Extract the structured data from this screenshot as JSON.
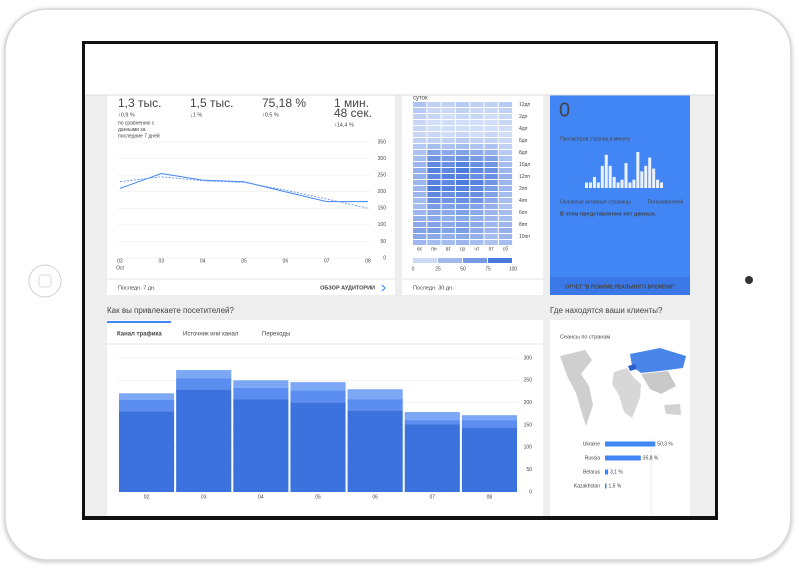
{
  "audience": {
    "metrics": [
      {
        "lines": [
          "1,3 тыс."
        ],
        "change": "↑0,9 %",
        "color": "#0f9d58"
      },
      {
        "lines": [
          "1,5 тыс."
        ],
        "change": "↓1 %",
        "color": "#db4437"
      },
      {
        "lines": [
          "75,18 %"
        ],
        "change": "↑0,5 %",
        "color": "#db4437"
      },
      {
        "lines": [
          "1 мин.",
          "48 сек."
        ],
        "change": "↑14,4 %",
        "color": "#0f9d58"
      }
    ],
    "comparison": [
      "по сравнению с",
      "данными за",
      "последние 7 дней"
    ],
    "period": "Последн. 7 дн.",
    "link": "ОБЗОР АУДИТОРИИ"
  },
  "activity": {
    "title": "суток",
    "period": "Последн. 30 дн."
  },
  "realtime": {
    "count": 0,
    "subtitle": "Просмотров страниц в минуту",
    "pages": "Основные активные страницы",
    "users": "Пользователей",
    "empty": "В этом представлении нет данных.",
    "link": "ОТЧЕТ \"В РЕЖИМЕ РЕАЛЬНОГО ВРЕМЕНИ\""
  },
  "acquisition": {
    "heading": "Как вы привлекаете посетителей?",
    "tabs": [
      "Канал трафика",
      "Источник или канал",
      "Переходы"
    ]
  },
  "geo": {
    "heading": "Где находятся ваши клиенты?",
    "subtitle": "Сеансы по странам"
  },
  "chart_data": [
    {
      "type": "line",
      "categories": [
        "02",
        "03",
        "04",
        "05",
        "06",
        "07",
        "08"
      ],
      "month": "Oct",
      "series": [
        {
          "color": "#4285f4",
          "style": "solid",
          "values": [
            210,
            255,
            235,
            230,
            200,
            170,
            170
          ]
        },
        {
          "color": "#6f9cf2",
          "style": "dashed",
          "values": [
            230,
            245,
            233,
            228,
            205,
            178,
            150
          ]
        }
      ],
      "ylim": [
        0,
        350
      ],
      "yticks": [
        0,
        50,
        100,
        150,
        200,
        250,
        300,
        350
      ],
      "grid": true
    },
    {
      "type": "heatmap",
      "columns": [
        "вс",
        "пн",
        "вт",
        "ср",
        "чт",
        "пт",
        "сб"
      ],
      "rows": [
        "12дп",
        null,
        "2дп",
        null,
        "4дп",
        null,
        "6дп",
        null,
        "8дп",
        null,
        "10дп",
        null,
        "12пп",
        null,
        "2пп",
        null,
        "4пп",
        null,
        "6пп",
        null,
        "8пп",
        null,
        "10пп",
        null
      ],
      "values": [
        [
          30,
          20,
          20,
          25,
          20,
          20,
          25
        ],
        [
          25,
          15,
          15,
          20,
          15,
          15,
          20
        ],
        [
          20,
          15,
          10,
          15,
          15,
          10,
          15
        ],
        [
          15,
          10,
          10,
          10,
          10,
          10,
          15
        ],
        [
          15,
          10,
          10,
          10,
          10,
          10,
          10
        ],
        [
          15,
          15,
          10,
          15,
          10,
          15,
          10
        ],
        [
          20,
          20,
          20,
          25,
          20,
          20,
          15
        ],
        [
          25,
          35,
          30,
          35,
          30,
          30,
          20
        ],
        [
          30,
          55,
          50,
          55,
          50,
          45,
          25
        ],
        [
          35,
          65,
          60,
          65,
          60,
          55,
          30
        ],
        [
          40,
          75,
          70,
          80,
          70,
          65,
          35
        ],
        [
          45,
          80,
          75,
          85,
          75,
          70,
          40
        ],
        [
          45,
          75,
          80,
          80,
          70,
          70,
          45
        ],
        [
          40,
          80,
          75,
          85,
          80,
          65,
          40
        ],
        [
          40,
          85,
          80,
          80,
          75,
          60,
          40
        ],
        [
          40,
          75,
          70,
          75,
          70,
          55,
          35
        ],
        [
          35,
          70,
          65,
          70,
          65,
          50,
          35
        ],
        [
          35,
          60,
          55,
          60,
          55,
          45,
          30
        ],
        [
          40,
          50,
          50,
          55,
          50,
          40,
          35
        ],
        [
          45,
          50,
          45,
          50,
          45,
          40,
          35
        ],
        [
          50,
          55,
          50,
          55,
          50,
          40,
          40
        ],
        [
          55,
          60,
          55,
          60,
          50,
          40,
          45
        ],
        [
          50,
          50,
          45,
          50,
          45,
          35,
          40
        ],
        [
          40,
          35,
          35,
          40,
          35,
          30,
          35
        ]
      ],
      "colors": [
        "#e3ebfc",
        "#3367d6"
      ],
      "clim": [
        0,
        100
      ],
      "legend_ticks": [
        0,
        25,
        50,
        75,
        100
      ]
    },
    {
      "type": "bar",
      "values": [
        2,
        2,
        4,
        2,
        8,
        12,
        8,
        4,
        2,
        3,
        9,
        2,
        3,
        13,
        6,
        8,
        11,
        7,
        3,
        2
      ],
      "color": "#ffffff"
    },
    {
      "type": "stacked_bar",
      "categories": [
        "02",
        "03",
        "04",
        "05",
        "06",
        "07",
        "08"
      ],
      "series": [
        {
          "color": "#3b72dd",
          "values": [
            181,
            230,
            208,
            201,
            183,
            152,
            145
          ]
        },
        {
          "color": "#5b8ef0",
          "values": [
            25,
            25,
            25,
            27,
            25,
            9,
            16
          ]
        },
        {
          "color": "#7ba7f5",
          "values": [
            15,
            18,
            17,
            18,
            22,
            18,
            11
          ]
        }
      ],
      "ylim": [
        0,
        300
      ],
      "yticks": [
        0,
        50,
        100,
        150,
        200,
        250,
        300
      ],
      "grid": true
    },
    {
      "type": "hbar",
      "categories": [
        "Ukraine",
        "Russia",
        "Belarus",
        "Kazakhstan"
      ],
      "values": [
        50.3,
        35.8,
        3.1,
        1.5
      ],
      "value_labels": [
        "50,3 %",
        "35,8 %",
        "3,1 %",
        "1,5 %"
      ],
      "color": "#4285f4"
    }
  ]
}
